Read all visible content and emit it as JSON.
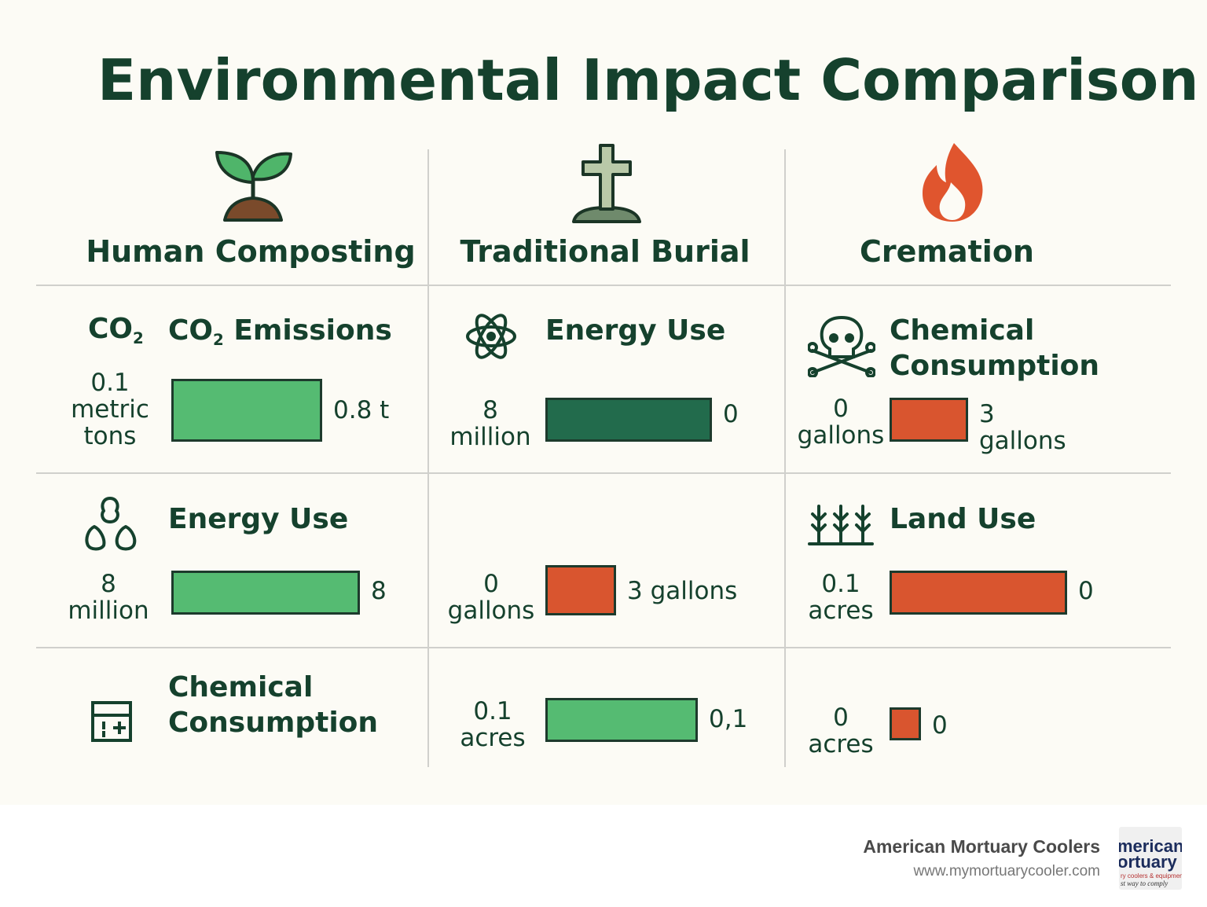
{
  "title": "Environmental Impact Comparison",
  "columns": [
    {
      "name": "Human Composting",
      "icon": "seedling-icon"
    },
    {
      "name": "Traditional Burial",
      "icon": "grave-cross-icon"
    },
    {
      "name": "Cremation",
      "icon": "flame-icon"
    }
  ],
  "colors": {
    "light_green": "#55bb72",
    "dark_green": "#226b4c",
    "orange": "#d9552f",
    "text": "#15412d"
  },
  "chart_data": {
    "type": "bar",
    "title": "Environmental Impact Comparison",
    "panels": [
      {
        "column": "Human Composting",
        "metric": "CO₂ Emissions",
        "icon": "co2-icon",
        "icon_text": "CO₂",
        "left_label": "0.1\nmetric\ntons",
        "right_label": "0.8 t",
        "value": 0.8,
        "unit": "t",
        "color": "#55bb72"
      },
      {
        "column": "Traditional Burial",
        "metric": "Energy Use",
        "icon": "atom-icon",
        "left_label": "8\nmillion",
        "right_label": "0",
        "value": 8,
        "color": "#226b4c"
      },
      {
        "column": "Cremation",
        "metric": "Chemical\nConsumption",
        "icon": "skull-crossbones-icon",
        "left_label": "0\ngallons",
        "right_label": "3\ngallons",
        "value": 3,
        "unit": "gallons",
        "color": "#d9552f"
      },
      {
        "column": "Human Composting",
        "metric": "Energy Use",
        "icon": "tree-cluster-icon",
        "left_label": "8\nmillion",
        "right_label": "8",
        "value": 8,
        "color": "#55bb72"
      },
      {
        "column": "Traditional Burial",
        "metric": "",
        "icon": "",
        "left_label": "0\ngallons",
        "right_label": "3 gallons",
        "value": 3,
        "unit": "gallons",
        "color": "#d9552f"
      },
      {
        "column": "Cremation",
        "metric": "Land Use",
        "icon": "crops-icon",
        "left_label": "0.1\nacres",
        "right_label": "0",
        "value": 0.1,
        "unit": "acres",
        "color": "#d9552f"
      },
      {
        "column": "Human Composting",
        "metric": "Chemical\nConsumption",
        "icon": "chemical-grid-icon",
        "left_label": "",
        "right_label": "",
        "value": null,
        "color": ""
      },
      {
        "column": "Traditional Burial",
        "metric": "",
        "icon": "",
        "left_label": "0.1\nacres",
        "right_label": "0,1",
        "value": 0.1,
        "unit": "acres",
        "color": "#55bb72"
      },
      {
        "column": "Cremation",
        "metric": "",
        "icon": "",
        "left_label": "0\nacres",
        "right_label": "0",
        "value": 0,
        "unit": "acres",
        "color": "#d9552f"
      }
    ]
  },
  "footer": {
    "company": "American Mortuary Coolers",
    "url": "www.mymortuarycooler.com",
    "logo_line1": "merican",
    "logo_line2": "ortuary",
    "logo_line3": "ry coolers & equipment",
    "logo_line4": "st way to comply"
  }
}
